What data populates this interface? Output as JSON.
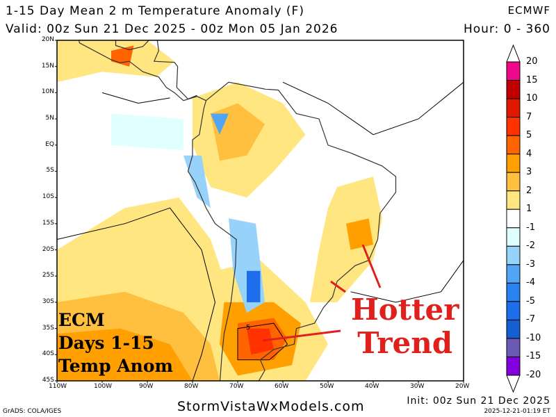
{
  "header": {
    "title": "1-15 Day Mean 2 m Temperature Anomaly (F)",
    "model": "ECMWF",
    "valid": "Valid: 00z Sun 21 Dec 2025 - 00z Mon 05 Jan 2026",
    "hour": "Hour: 0 - 360"
  },
  "map": {
    "lat_range": [
      "20N",
      "45S"
    ],
    "lon_range": [
      "110W",
      "20W"
    ],
    "lat_labels": [
      "20N",
      "15N",
      "10N",
      "5N",
      "EQ",
      "5S",
      "10S",
      "15S",
      "20S",
      "25S",
      "30S",
      "35S",
      "40S",
      "45S"
    ],
    "lon_labels": [
      "110W",
      "100W",
      "90W",
      "80W",
      "70W",
      "60W",
      "50W",
      "40W",
      "30W",
      "20W"
    ],
    "contour_label": "5"
  },
  "colorbar": {
    "labels": [
      "20",
      "15",
      "10",
      "7",
      "5",
      "4",
      "3",
      "2",
      "1",
      "-1",
      "-2",
      "-3",
      "-4",
      "-5",
      "-7",
      "-10",
      "-15",
      "-20"
    ],
    "colors": [
      "#f0088a",
      "#c00000",
      "#e01800",
      "#ff3200",
      "#ff6400",
      "#ffa000",
      "#ffc040",
      "#ffe680",
      "#ffffff",
      "#e0ffff",
      "#96d2fa",
      "#50a5f5",
      "#2882f0",
      "#1e6eeb",
      "#1460d2",
      "#6a5ab4",
      "#8200dc"
    ]
  },
  "overlay": {
    "ecm_lines": [
      "ECM",
      "Days 1-15",
      "Temp Anom"
    ],
    "hotter_lines": [
      "Hotter",
      "Trend"
    ],
    "accent_color": "#e0201c"
  },
  "footer": {
    "credit": "GrADS: COLA/IGES",
    "site": "StormVistaWxModels.com",
    "init": "Init: 00z Sun 21 Dec 2025",
    "timestamp": "2025-12-21-01:19 ET"
  }
}
